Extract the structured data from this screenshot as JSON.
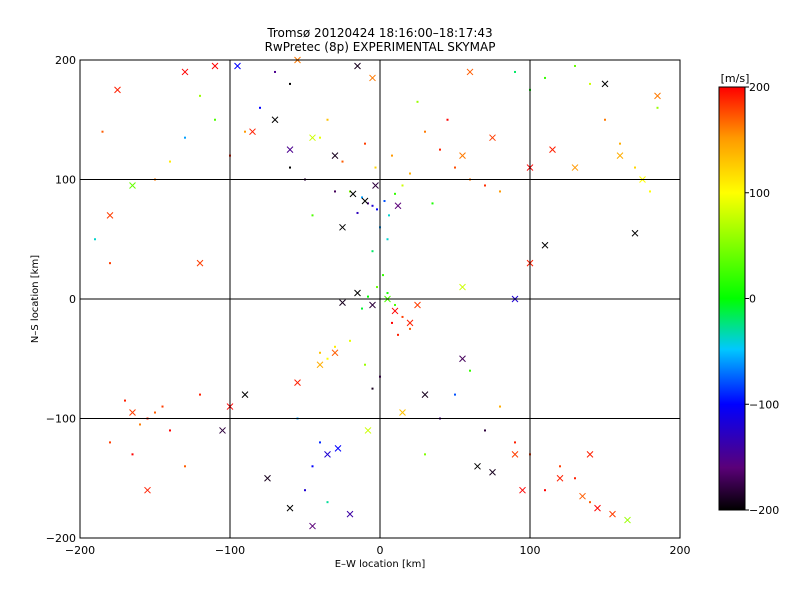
{
  "chart_data": {
    "type": "scatter",
    "title": "Tromsø 20120424 18:16:00–18:17:43",
    "subtitle": "RwPretec (8p) EXPERIMENTAL SKYMAP",
    "xlabel": "E–W location [km]",
    "ylabel": "N–S location [km]",
    "xlim": [
      -200,
      200
    ],
    "ylim": [
      -200,
      200
    ],
    "xticks": [
      -200,
      -100,
      0,
      100,
      200
    ],
    "yticks": [
      -200,
      -100,
      0,
      100,
      200
    ],
    "grid": true,
    "colorbar": {
      "label": "[m/s]",
      "range": [
        -200,
        200
      ],
      "ticks": [
        200,
        100,
        0,
        -100,
        -200
      ],
      "colormap": "rainbow (black-purple-blue-cyan-green-yellow-red)"
    },
    "series": [
      {
        "marker": "dot",
        "points": [
          [
            -5,
            78,
            -120
          ],
          [
            -8,
            80,
            -150
          ],
          [
            -2,
            75,
            -100
          ],
          [
            3,
            82,
            -80
          ],
          [
            -12,
            85,
            -60
          ],
          [
            6,
            70,
            -40
          ],
          [
            -15,
            72,
            -130
          ],
          [
            10,
            88,
            20
          ],
          [
            -20,
            90,
            50
          ],
          [
            15,
            95,
            80
          ],
          [
            -3,
            110,
            120
          ],
          [
            8,
            120,
            150
          ],
          [
            -10,
            130,
            180
          ],
          [
            20,
            105,
            140
          ],
          [
            -25,
            115,
            170
          ],
          [
            30,
            140,
            160
          ],
          [
            -35,
            150,
            130
          ],
          [
            40,
            125,
            190
          ],
          [
            50,
            110,
            175
          ],
          [
            60,
            100,
            160
          ],
          [
            70,
            95,
            185
          ],
          [
            80,
            90,
            150
          ],
          [
            45,
            150,
            200
          ],
          [
            -40,
            135,
            90
          ],
          [
            25,
            165,
            60
          ],
          [
            -50,
            100,
            -180
          ],
          [
            -60,
            110,
            -200
          ],
          [
            -30,
            90,
            -170
          ],
          [
            35,
            80,
            10
          ],
          [
            -45,
            70,
            30
          ],
          [
            0,
            60,
            -60
          ],
          [
            5,
            50,
            -40
          ],
          [
            -5,
            40,
            -20
          ],
          [
            2,
            20,
            20
          ],
          [
            -2,
            10,
            40
          ],
          [
            5,
            5,
            10
          ],
          [
            -8,
            2,
            0
          ],
          [
            10,
            -5,
            30
          ],
          [
            -12,
            -8,
            -10
          ],
          [
            15,
            -15,
            180
          ],
          [
            8,
            -20,
            200
          ],
          [
            20,
            -25,
            170
          ],
          [
            12,
            -30,
            190
          ],
          [
            -20,
            -35,
            90
          ],
          [
            -30,
            -40,
            110
          ],
          [
            -35,
            -50,
            100
          ],
          [
            -40,
            -45,
            130
          ],
          [
            -10,
            -55,
            60
          ],
          [
            0,
            -65,
            -160
          ],
          [
            -5,
            -75,
            -190
          ],
          [
            -150,
            -95,
            170
          ],
          [
            -155,
            -100,
            190
          ],
          [
            -145,
            -90,
            180
          ],
          [
            -160,
            -105,
            160
          ],
          [
            -140,
            -110,
            200
          ],
          [
            -170,
            -85,
            190
          ],
          [
            -180,
            -120,
            180
          ],
          [
            -130,
            -140,
            170
          ],
          [
            -120,
            -80,
            190
          ],
          [
            -165,
            -130,
            200
          ],
          [
            120,
            -140,
            180
          ],
          [
            130,
            -150,
            190
          ],
          [
            110,
            -160,
            200
          ],
          [
            140,
            -170,
            170
          ],
          [
            100,
            -130,
            180
          ],
          [
            -45,
            -140,
            -100
          ],
          [
            -50,
            -160,
            -120
          ],
          [
            -40,
            -120,
            -90
          ],
          [
            -55,
            -100,
            -60
          ],
          [
            -35,
            -170,
            -30
          ],
          [
            150,
            150,
            160
          ],
          [
            160,
            130,
            140
          ],
          [
            170,
            110,
            120
          ],
          [
            180,
            90,
            100
          ],
          [
            185,
            160,
            60
          ],
          [
            140,
            180,
            80
          ],
          [
            130,
            195,
            40
          ],
          [
            110,
            185,
            20
          ],
          [
            100,
            175,
            0
          ],
          [
            90,
            190,
            -20
          ],
          [
            -60,
            180,
            -200
          ],
          [
            -70,
            190,
            -150
          ],
          [
            -80,
            160,
            -100
          ],
          [
            -90,
            140,
            150
          ],
          [
            -100,
            120,
            190
          ],
          [
            -110,
            150,
            30
          ],
          [
            -120,
            170,
            60
          ],
          [
            -130,
            135,
            -60
          ],
          [
            -140,
            115,
            110
          ],
          [
            -150,
            100,
            160
          ],
          [
            -190,
            50,
            -40
          ],
          [
            -180,
            30,
            180
          ],
          [
            -185,
            140,
            170
          ],
          [
            60,
            -60,
            20
          ],
          [
            50,
            -80,
            -80
          ],
          [
            40,
            -100,
            -150
          ],
          [
            70,
            -110,
            -180
          ],
          [
            80,
            -90,
            140
          ],
          [
            90,
            -120,
            190
          ],
          [
            30,
            -130,
            50
          ]
        ]
      },
      {
        "marker": "x",
        "points": [
          [
            -10,
            82,
            -200
          ],
          [
            -18,
            88,
            -200
          ],
          [
            -3,
            95,
            -180
          ],
          [
            12,
            78,
            -160
          ],
          [
            -25,
            60,
            -200
          ],
          [
            -30,
            120,
            -190
          ],
          [
            -45,
            135,
            80
          ],
          [
            -60,
            125,
            -150
          ],
          [
            -70,
            150,
            -200
          ],
          [
            -85,
            140,
            190
          ],
          [
            55,
            120,
            160
          ],
          [
            75,
            135,
            180
          ],
          [
            100,
            110,
            200
          ],
          [
            115,
            125,
            190
          ],
          [
            130,
            110,
            150
          ],
          [
            160,
            120,
            140
          ],
          [
            175,
            100,
            100
          ],
          [
            -15,
            5,
            -200
          ],
          [
            -25,
            -3,
            -190
          ],
          [
            -5,
            -5,
            -180
          ],
          [
            5,
            0,
            30
          ],
          [
            10,
            -10,
            200
          ],
          [
            20,
            -20,
            190
          ],
          [
            25,
            -5,
            180
          ],
          [
            -30,
            -45,
            170
          ],
          [
            -40,
            -55,
            140
          ],
          [
            -55,
            -70,
            190
          ],
          [
            -90,
            -80,
            -200
          ],
          [
            -100,
            -90,
            200
          ],
          [
            -105,
            -110,
            -180
          ],
          [
            -75,
            -150,
            -190
          ],
          [
            -60,
            -175,
            -200
          ],
          [
            -45,
            -190,
            -160
          ],
          [
            -20,
            -180,
            -140
          ],
          [
            -35,
            -130,
            -120
          ],
          [
            -28,
            -125,
            -100
          ],
          [
            -8,
            -110,
            80
          ],
          [
            15,
            -95,
            130
          ],
          [
            30,
            -80,
            -190
          ],
          [
            55,
            -50,
            -170
          ],
          [
            65,
            -140,
            -200
          ],
          [
            75,
            -145,
            -190
          ],
          [
            90,
            -130,
            180
          ],
          [
            95,
            -160,
            200
          ],
          [
            120,
            -150,
            190
          ],
          [
            135,
            -165,
            170
          ],
          [
            145,
            -175,
            200
          ],
          [
            155,
            -180,
            180
          ],
          [
            165,
            -185,
            60
          ],
          [
            140,
            -130,
            190
          ],
          [
            -155,
            -160,
            190
          ],
          [
            -165,
            -95,
            180
          ],
          [
            -180,
            70,
            180
          ],
          [
            -165,
            95,
            40
          ],
          [
            -175,
            175,
            190
          ],
          [
            -130,
            190,
            200
          ],
          [
            -110,
            195,
            200
          ],
          [
            -95,
            195,
            -100
          ],
          [
            -55,
            200,
            160
          ],
          [
            -15,
            195,
            -190
          ],
          [
            -5,
            185,
            160
          ],
          [
            60,
            190,
            170
          ],
          [
            150,
            180,
            -200
          ],
          [
            185,
            170,
            160
          ],
          [
            170,
            55,
            -200
          ],
          [
            110,
            45,
            -200
          ],
          [
            100,
            30,
            190
          ],
          [
            90,
            0,
            -120
          ],
          [
            55,
            10,
            80
          ],
          [
            -120,
            30,
            180
          ]
        ]
      }
    ]
  }
}
